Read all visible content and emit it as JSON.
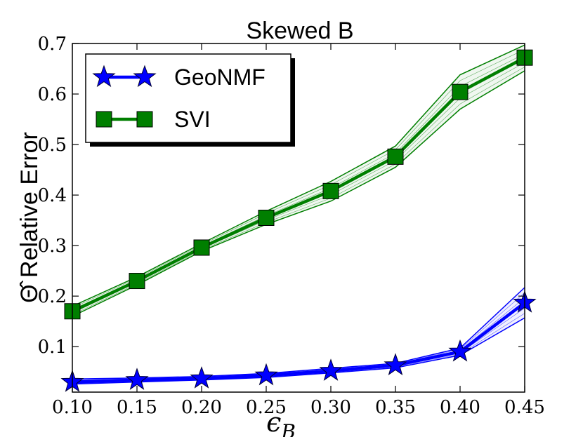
{
  "chart_data": {
    "type": "line",
    "title": "Skewed B",
    "xlabel": "ϵ",
    "xlabel_subscript": "B",
    "ylabel": "Θ̂ Relative Error",
    "xlim": [
      0.1,
      0.45
    ],
    "ylim": [
      0.01,
      0.7
    ],
    "x_ticks": [
      "0.10",
      "0.15",
      "0.20",
      "0.25",
      "0.30",
      "0.35",
      "0.40",
      "0.45"
    ],
    "y_ticks": [
      "0.1",
      "0.2",
      "0.3",
      "0.4",
      "0.5",
      "0.6",
      "0.7"
    ],
    "x": [
      0.1,
      0.15,
      0.2,
      0.25,
      0.3,
      0.35,
      0.4,
      0.45
    ],
    "legend_position": "upper-left",
    "series": [
      {
        "name": "GeoNMF",
        "color": "#0000ff",
        "marker": "star",
        "values": [
          0.03,
          0.034,
          0.037,
          0.043,
          0.052,
          0.063,
          0.09,
          0.187
        ],
        "upper": [
          0.036,
          0.038,
          0.041,
          0.047,
          0.057,
          0.067,
          0.097,
          0.217
        ],
        "lower": [
          0.026,
          0.03,
          0.034,
          0.039,
          0.048,
          0.058,
          0.083,
          0.157
        ]
      },
      {
        "name": "SVI",
        "color": "#007f00",
        "marker": "square",
        "values": [
          0.17,
          0.23,
          0.296,
          0.355,
          0.408,
          0.476,
          0.604,
          0.672
        ],
        "upper": [
          0.18,
          0.238,
          0.304,
          0.368,
          0.427,
          0.497,
          0.638,
          0.697
        ],
        "lower": [
          0.16,
          0.222,
          0.289,
          0.342,
          0.388,
          0.455,
          0.57,
          0.646
        ]
      }
    ]
  }
}
